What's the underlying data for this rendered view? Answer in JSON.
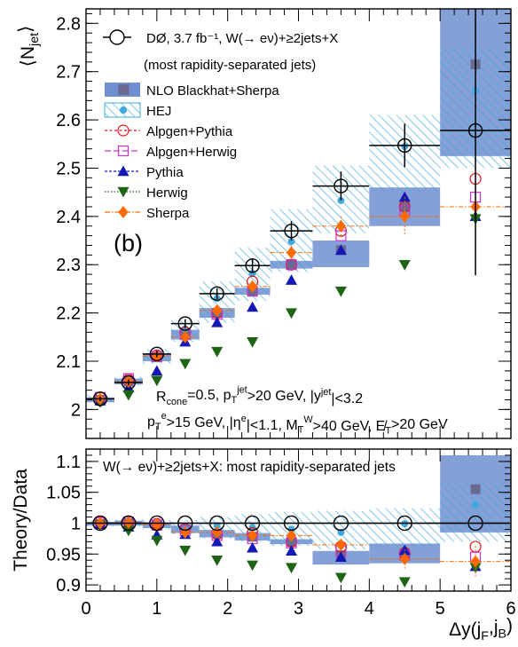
{
  "colors": {
    "data": "#000000",
    "blackhat_fill": "#6f8fd0",
    "blackhat_marker": "#6a6a90",
    "hej": "#3fa9e0",
    "alpgen_pythia": "#e0141e",
    "alpgen_herwig": "#cc33cc",
    "pythia": "#1418b4",
    "herwig": "#1e6414",
    "sherpa": "#ff6a00"
  },
  "chart_data": [
    {
      "type": "scatter",
      "panel": "top",
      "ylabel": "⟨N_jet⟩",
      "xlim": [
        0,
        6
      ],
      "ylim": [
        1.94,
        2.83
      ],
      "yticks": [
        2.0,
        2.1,
        2.2,
        2.3,
        2.4,
        2.5,
        2.6,
        2.7,
        2.8
      ],
      "ytick_labels": [
        "2",
        "2.1",
        "2.2",
        "2.3",
        "2.4",
        "2.5",
        "2.6",
        "2.7",
        "2.8"
      ],
      "panel_label": "(b)",
      "legend_header": "DØ, 3.7 fb⁻¹, W(→ eν)+≥2jets+X",
      "legend_subheader": "(most rapidity-separated jets)",
      "cuts_line1": "R_cone=0.5, p_T^jet>20 GeV, |y^jet|<3.2",
      "cuts_line2": "p_T^e>15 GeV, |η^e|<1.1, M_T^W>40 GeV, E̸_T>20 GeV",
      "bins": [
        [
          0.0,
          0.4
        ],
        [
          0.4,
          0.8
        ],
        [
          0.8,
          1.2
        ],
        [
          1.2,
          1.6
        ],
        [
          1.6,
          2.1
        ],
        [
          2.1,
          2.6
        ],
        [
          2.6,
          3.2
        ],
        [
          3.2,
          4.0
        ],
        [
          4.0,
          5.0
        ],
        [
          5.0,
          6.0
        ]
      ],
      "x": [
        0.2,
        0.6,
        1.0,
        1.4,
        1.85,
        2.35,
        2.9,
        3.6,
        4.5,
        5.5
      ],
      "series": [
        {
          "name": "DØ, 3.7 fb⁻¹, W(→ eν)+≥2jets+X",
          "kind": "data",
          "values": [
            2.022,
            2.056,
            2.115,
            2.178,
            2.24,
            2.298,
            2.37,
            2.463,
            2.547,
            2.578
          ],
          "yerr": [
            0.005,
            0.006,
            0.007,
            0.009,
            0.011,
            0.015,
            0.02,
            0.03,
            0.045,
            0.3
          ]
        },
        {
          "name": "NLO Blackhat+Sherpa",
          "kind": "band",
          "values": [
            2.02,
            2.058,
            2.108,
            2.155,
            2.2,
            2.245,
            2.3,
            2.33,
            2.42,
            2.715
          ],
          "band_low": [
            2.015,
            2.052,
            2.1,
            2.145,
            2.19,
            2.238,
            2.292,
            2.295,
            2.38,
            2.525
          ],
          "band_high": [
            2.025,
            2.064,
            2.116,
            2.165,
            2.21,
            2.252,
            2.308,
            2.35,
            2.46,
            2.84
          ]
        },
        {
          "name": "HEJ",
          "kind": "hatch",
          "values": [
            2.023,
            2.06,
            2.11,
            2.167,
            2.23,
            2.282,
            2.348,
            2.433,
            2.545,
            2.66
          ],
          "band_low": [
            2.015,
            2.05,
            2.095,
            2.14,
            2.18,
            2.225,
            2.285,
            2.365,
            2.45,
            2.5
          ],
          "band_high": [
            2.03,
            2.068,
            2.125,
            2.185,
            2.265,
            2.335,
            2.415,
            2.505,
            2.61,
            2.75
          ]
        },
        {
          "name": "Alpgen+Pythia",
          "kind": "marker",
          "marker": "circle-open",
          "values": [
            2.025,
            2.062,
            2.112,
            2.16,
            2.2,
            2.265,
            2.3,
            2.37,
            2.42,
            2.478
          ]
        },
        {
          "name": "Alpgen+Herwig",
          "kind": "marker",
          "marker": "square-open",
          "values": [
            2.025,
            2.064,
            2.11,
            2.155,
            2.197,
            2.245,
            2.3,
            2.36,
            2.412,
            2.44
          ]
        },
        {
          "name": "Pythia",
          "kind": "marker",
          "marker": "triangle-up",
          "values": [
            2.018,
            2.045,
            2.08,
            2.14,
            2.18,
            2.212,
            2.268,
            2.33,
            2.44,
            2.4
          ]
        },
        {
          "name": "Herwig",
          "kind": "marker",
          "marker": "triangle-down",
          "values": [
            2.015,
            2.03,
            2.06,
            2.095,
            2.12,
            2.14,
            2.2,
            2.245,
            2.3,
            2.395
          ]
        },
        {
          "name": "Sherpa",
          "kind": "marker",
          "marker": "diamond",
          "values": [
            2.022,
            2.058,
            2.11,
            2.15,
            2.205,
            2.255,
            2.325,
            2.38,
            2.4,
            2.42
          ],
          "yerr": [
            0.003,
            0.004,
            0.005,
            0.006,
            0.008,
            0.01,
            0.015,
            0.02,
            0.04,
            0.06
          ]
        }
      ]
    },
    {
      "type": "scatter",
      "panel": "bottom",
      "title": "W(→ eν)+≥2jets+X: most rapidity-separated jets",
      "ylabel": "Theory/Data",
      "xlabel": "Δy(j_F,j_B)",
      "xlim": [
        0,
        6
      ],
      "ylim": [
        0.89,
        1.12
      ],
      "xticks": [
        0,
        1,
        2,
        3,
        4,
        5,
        6
      ],
      "yticks": [
        0.9,
        0.95,
        1.0,
        1.05,
        1.1
      ],
      "ytick_labels": [
        "0.9",
        "0.95",
        "1",
        "1.05",
        "1.1"
      ],
      "x": [
        0.2,
        0.6,
        1.0,
        1.4,
        1.85,
        2.35,
        2.9,
        3.6,
        4.5,
        5.5
      ],
      "series": [
        {
          "name": "DØ, 3.7 fb⁻¹, W(→ eν)+≥2jets+X",
          "kind": "data",
          "values": [
            1,
            1,
            1,
            1,
            1,
            1,
            1,
            1,
            1,
            1
          ]
        },
        {
          "name": "NLO Blackhat+Sherpa",
          "kind": "band",
          "values": [
            0.999,
            1.0,
            0.996,
            0.99,
            0.983,
            0.978,
            0.97,
            0.948,
            0.95,
            1.055
          ],
          "band_low": [
            0.996,
            0.996,
            0.992,
            0.984,
            0.977,
            0.972,
            0.966,
            0.933,
            0.935,
            0.985
          ],
          "band_high": [
            1.002,
            1.004,
            1.0,
            0.996,
            0.989,
            0.984,
            0.974,
            0.955,
            0.967,
            1.11
          ]
        },
        {
          "name": "HEJ",
          "kind": "hatch",
          "values": [
            1.0,
            1.002,
            0.997,
            0.994,
            0.996,
            0.993,
            0.99,
            0.985,
            0.999,
            1.03
          ],
          "band_low": [
            0.995,
            0.995,
            0.99,
            0.982,
            0.975,
            0.97,
            0.963,
            0.958,
            0.96,
            0.97
          ],
          "band_high": [
            1.004,
            1.006,
            1.005,
            1.005,
            1.01,
            1.015,
            1.018,
            1.02,
            1.024,
            1.065
          ]
        },
        {
          "name": "Alpgen+Pythia",
          "kind": "marker",
          "marker": "circle-open",
          "values": [
            1.002,
            1.003,
            0.999,
            0.99,
            0.982,
            0.984,
            0.97,
            0.962,
            0.952,
            0.962
          ]
        },
        {
          "name": "Alpgen+Herwig",
          "kind": "marker",
          "marker": "square-open",
          "values": [
            1.001,
            1.002,
            0.997,
            0.988,
            0.98,
            0.975,
            0.968,
            0.955,
            0.948,
            0.945
          ]
        },
        {
          "name": "Pythia",
          "kind": "marker",
          "marker": "triangle-up",
          "values": [
            0.998,
            0.994,
            0.981,
            0.982,
            0.97,
            0.96,
            0.955,
            0.945,
            0.956,
            0.93
          ]
        },
        {
          "name": "Herwig",
          "kind": "marker",
          "marker": "triangle-down",
          "values": [
            0.997,
            0.988,
            0.972,
            0.956,
            0.94,
            0.932,
            0.928,
            0.912,
            0.905,
            0.928
          ]
        },
        {
          "name": "Sherpa",
          "kind": "marker",
          "marker": "diamond",
          "values": [
            1.0,
            1.001,
            0.998,
            0.985,
            0.985,
            0.98,
            0.98,
            0.965,
            0.942,
            0.938
          ],
          "yerr": [
            0.002,
            0.002,
            0.003,
            0.004,
            0.005,
            0.006,
            0.007,
            0.008,
            0.016,
            0.025
          ]
        }
      ]
    }
  ]
}
